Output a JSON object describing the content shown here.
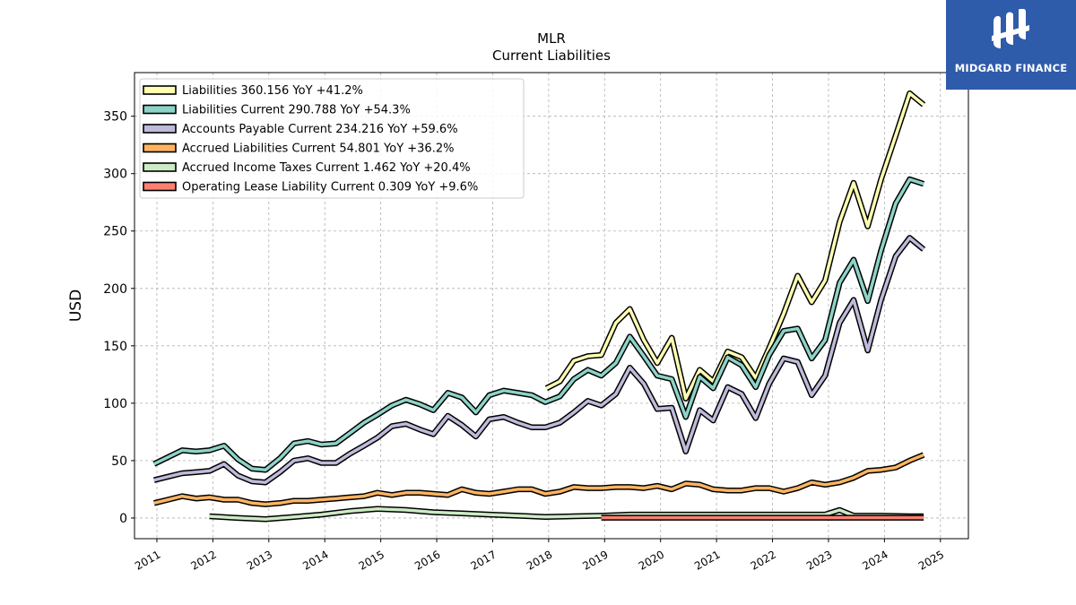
{
  "brand": {
    "name": "MIDGARD FINANCE",
    "color": "#2f5bab"
  },
  "chart_data": {
    "type": "line",
    "title": "MLR",
    "subtitle": "Current  Liabilities",
    "ylabel": "USD",
    "xlabel": "",
    "xlim": [
      2010.6,
      2025.5
    ],
    "ylim": [
      -18,
      388
    ],
    "yticks": [
      0,
      50,
      100,
      150,
      200,
      250,
      300,
      350
    ],
    "xticks": [
      2011,
      2012,
      2013,
      2014,
      2015,
      2016,
      2017,
      2018,
      2019,
      2020,
      2021,
      2022,
      2023,
      2024,
      2025
    ],
    "grid": true,
    "legend_position": "top-left",
    "series": [
      {
        "name": "Liabilities",
        "legend": "Liabilities  360.156 YoY +41.2%",
        "color": "#ffffb3",
        "points": [
          [
            2017.96,
            113
          ],
          [
            2018.2,
            119
          ],
          [
            2018.45,
            137
          ],
          [
            2018.7,
            141
          ],
          [
            2018.94,
            142
          ],
          [
            2019.2,
            170
          ],
          [
            2019.45,
            182
          ],
          [
            2019.7,
            155
          ],
          [
            2019.94,
            135
          ],
          [
            2020.2,
            157
          ],
          [
            2020.45,
            104
          ],
          [
            2020.7,
            129
          ],
          [
            2020.94,
            119
          ],
          [
            2021.2,
            145
          ],
          [
            2021.45,
            140
          ],
          [
            2021.7,
            122
          ],
          [
            2021.94,
            148
          ],
          [
            2022.2,
            178
          ],
          [
            2022.45,
            211
          ],
          [
            2022.7,
            188
          ],
          [
            2022.94,
            207
          ],
          [
            2023.2,
            258
          ],
          [
            2023.45,
            292
          ],
          [
            2023.7,
            254
          ],
          [
            2023.94,
            295
          ],
          [
            2024.2,
            333
          ],
          [
            2024.45,
            370
          ],
          [
            2024.7,
            360
          ]
        ]
      },
      {
        "name": "Liabilities Current",
        "legend": "Liabilities Current  290.788 YoY +54.3%",
        "color": "#8dd3c7",
        "points": [
          [
            2010.95,
            47
          ],
          [
            2011.2,
            53
          ],
          [
            2011.45,
            59
          ],
          [
            2011.7,
            58
          ],
          [
            2011.94,
            59
          ],
          [
            2012.2,
            63
          ],
          [
            2012.45,
            51
          ],
          [
            2012.7,
            43
          ],
          [
            2012.94,
            42
          ],
          [
            2013.2,
            52
          ],
          [
            2013.45,
            65
          ],
          [
            2013.7,
            67
          ],
          [
            2013.94,
            64
          ],
          [
            2014.2,
            65
          ],
          [
            2014.45,
            74
          ],
          [
            2014.7,
            83
          ],
          [
            2014.94,
            90
          ],
          [
            2015.2,
            98
          ],
          [
            2015.45,
            103
          ],
          [
            2015.7,
            99
          ],
          [
            2015.94,
            94
          ],
          [
            2016.2,
            109
          ],
          [
            2016.45,
            105
          ],
          [
            2016.7,
            92
          ],
          [
            2016.94,
            107
          ],
          [
            2017.2,
            111
          ],
          [
            2017.45,
            109
          ],
          [
            2017.7,
            107
          ],
          [
            2017.94,
            101
          ],
          [
            2018.2,
            106
          ],
          [
            2018.45,
            121
          ],
          [
            2018.7,
            129
          ],
          [
            2018.94,
            124
          ],
          [
            2019.2,
            135
          ],
          [
            2019.45,
            158
          ],
          [
            2019.7,
            141
          ],
          [
            2019.94,
            124
          ],
          [
            2020.2,
            121
          ],
          [
            2020.45,
            88
          ],
          [
            2020.7,
            123
          ],
          [
            2020.94,
            113
          ],
          [
            2021.2,
            140
          ],
          [
            2021.45,
            133
          ],
          [
            2021.7,
            114
          ],
          [
            2021.94,
            142
          ],
          [
            2022.2,
            163
          ],
          [
            2022.45,
            165
          ],
          [
            2022.7,
            139
          ],
          [
            2022.94,
            155
          ],
          [
            2023.2,
            205
          ],
          [
            2023.45,
            225
          ],
          [
            2023.7,
            189
          ],
          [
            2023.94,
            233
          ],
          [
            2024.2,
            274
          ],
          [
            2024.45,
            295
          ],
          [
            2024.7,
            291
          ]
        ]
      },
      {
        "name": "Accounts Payable Current",
        "legend": "Accounts Payable Current  234.216 YoY +59.6%",
        "color": "#bebada",
        "points": [
          [
            2010.95,
            33
          ],
          [
            2011.2,
            36
          ],
          [
            2011.45,
            39
          ],
          [
            2011.7,
            40
          ],
          [
            2011.94,
            41
          ],
          [
            2012.2,
            47
          ],
          [
            2012.45,
            37
          ],
          [
            2012.7,
            32
          ],
          [
            2012.94,
            31
          ],
          [
            2013.2,
            40
          ],
          [
            2013.45,
            50
          ],
          [
            2013.7,
            52
          ],
          [
            2013.94,
            48
          ],
          [
            2014.2,
            48
          ],
          [
            2014.45,
            56
          ],
          [
            2014.7,
            63
          ],
          [
            2014.94,
            70
          ],
          [
            2015.2,
            80
          ],
          [
            2015.45,
            82
          ],
          [
            2015.7,
            77
          ],
          [
            2015.94,
            73
          ],
          [
            2016.2,
            89
          ],
          [
            2016.45,
            81
          ],
          [
            2016.7,
            71
          ],
          [
            2016.94,
            86
          ],
          [
            2017.2,
            88
          ],
          [
            2017.45,
            83
          ],
          [
            2017.7,
            79
          ],
          [
            2017.94,
            79
          ],
          [
            2018.2,
            83
          ],
          [
            2018.45,
            92
          ],
          [
            2018.7,
            102
          ],
          [
            2018.94,
            98
          ],
          [
            2019.2,
            108
          ],
          [
            2019.45,
            131
          ],
          [
            2019.7,
            117
          ],
          [
            2019.94,
            95
          ],
          [
            2020.2,
            96
          ],
          [
            2020.45,
            58
          ],
          [
            2020.7,
            94
          ],
          [
            2020.94,
            85
          ],
          [
            2021.2,
            114
          ],
          [
            2021.45,
            108
          ],
          [
            2021.7,
            87
          ],
          [
            2021.94,
            117
          ],
          [
            2022.2,
            139
          ],
          [
            2022.45,
            136
          ],
          [
            2022.7,
            107
          ],
          [
            2022.94,
            124
          ],
          [
            2023.2,
            170
          ],
          [
            2023.45,
            190
          ],
          [
            2023.7,
            146
          ],
          [
            2023.94,
            190
          ],
          [
            2024.2,
            228
          ],
          [
            2024.45,
            244
          ],
          [
            2024.7,
            234
          ]
        ]
      },
      {
        "name": "Accrued Liabilities Current",
        "legend": "Accrued Liabilities Current  54.801 YoY +36.2%",
        "color": "#fdb462",
        "points": [
          [
            2010.95,
            13
          ],
          [
            2011.2,
            16
          ],
          [
            2011.45,
            19
          ],
          [
            2011.7,
            17
          ],
          [
            2011.94,
            18
          ],
          [
            2012.2,
            16
          ],
          [
            2012.45,
            16
          ],
          [
            2012.7,
            13
          ],
          [
            2012.94,
            12
          ],
          [
            2013.2,
            13
          ],
          [
            2013.45,
            15
          ],
          [
            2013.7,
            15
          ],
          [
            2013.94,
            16
          ],
          [
            2014.2,
            17
          ],
          [
            2014.45,
            18
          ],
          [
            2014.7,
            19
          ],
          [
            2014.94,
            22
          ],
          [
            2015.2,
            20
          ],
          [
            2015.45,
            22
          ],
          [
            2015.7,
            22
          ],
          [
            2015.94,
            21
          ],
          [
            2016.2,
            20
          ],
          [
            2016.45,
            25
          ],
          [
            2016.7,
            22
          ],
          [
            2016.94,
            21
          ],
          [
            2017.2,
            23
          ],
          [
            2017.45,
            25
          ],
          [
            2017.7,
            25
          ],
          [
            2017.94,
            21
          ],
          [
            2018.2,
            23
          ],
          [
            2018.45,
            27
          ],
          [
            2018.7,
            26
          ],
          [
            2018.94,
            26
          ],
          [
            2019.2,
            27
          ],
          [
            2019.45,
            27
          ],
          [
            2019.7,
            26
          ],
          [
            2019.94,
            28
          ],
          [
            2020.2,
            25
          ],
          [
            2020.45,
            30
          ],
          [
            2020.7,
            29
          ],
          [
            2020.94,
            25
          ],
          [
            2021.2,
            24
          ],
          [
            2021.45,
            24
          ],
          [
            2021.7,
            26
          ],
          [
            2021.94,
            26
          ],
          [
            2022.2,
            23
          ],
          [
            2022.45,
            26
          ],
          [
            2022.7,
            31
          ],
          [
            2022.94,
            29
          ],
          [
            2023.2,
            31
          ],
          [
            2023.45,
            35
          ],
          [
            2023.7,
            41
          ],
          [
            2023.94,
            42
          ],
          [
            2024.2,
            44
          ],
          [
            2024.45,
            50
          ],
          [
            2024.7,
            55
          ]
        ]
      },
      {
        "name": "Accrued Income Taxes Current",
        "legend": "Accrued Income Taxes Current  1.462 YoY +20.4%",
        "color": "#ccebc5",
        "points": [
          [
            2011.94,
            1.5
          ],
          [
            2012.45,
            0
          ],
          [
            2012.94,
            -1
          ],
          [
            2013.45,
            1
          ],
          [
            2013.94,
            3
          ],
          [
            2014.45,
            6
          ],
          [
            2014.94,
            8
          ],
          [
            2015.45,
            7
          ],
          [
            2015.94,
            5
          ],
          [
            2016.45,
            4
          ],
          [
            2016.94,
            3
          ],
          [
            2017.45,
            2
          ],
          [
            2017.94,
            1
          ],
          [
            2018.45,
            1.5
          ],
          [
            2018.94,
            2
          ],
          [
            2019.45,
            3
          ],
          [
            2019.94,
            3
          ],
          [
            2020.45,
            3
          ],
          [
            2020.94,
            3
          ],
          [
            2021.45,
            3
          ],
          [
            2021.94,
            3
          ],
          [
            2022.45,
            3
          ],
          [
            2022.94,
            3
          ],
          [
            2023.2,
            7
          ],
          [
            2023.45,
            2
          ],
          [
            2023.94,
            2
          ],
          [
            2024.45,
            1.5
          ],
          [
            2024.7,
            1.5
          ]
        ]
      },
      {
        "name": "Operating Lease Liability Current",
        "legend": "Operating Lease Liability Current  0.309 YoY +9.6%",
        "color": "#fb8072",
        "points": [
          [
            2018.94,
            0.3
          ],
          [
            2024.7,
            0.3
          ]
        ]
      }
    ]
  }
}
